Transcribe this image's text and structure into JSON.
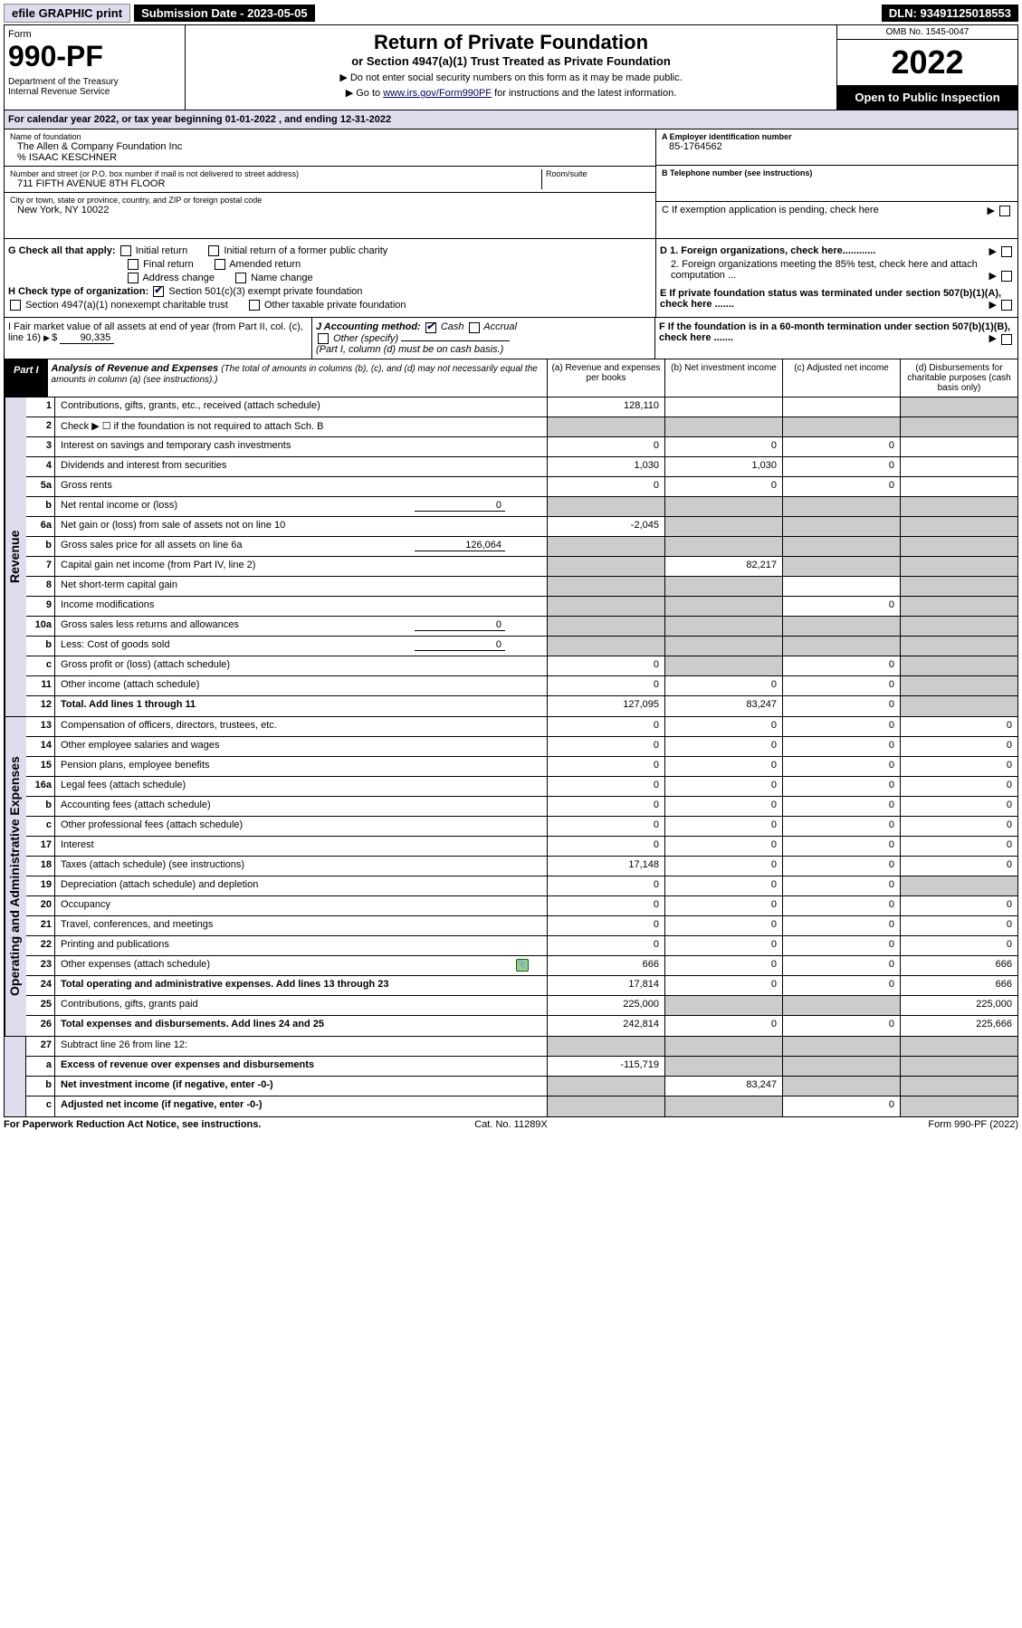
{
  "topbar": {
    "efile": "efile GRAPHIC print",
    "subdate_lbl": "Submission Date - 2023-05-05",
    "dln": "DLN: 93491125018553"
  },
  "header": {
    "form_word": "Form",
    "form_no": "990-PF",
    "dept": "Department of the Treasury\nInternal Revenue Service",
    "title": "Return of Private Foundation",
    "subtitle": "or Section 4947(a)(1) Trust Treated as Private Foundation",
    "note1": "▶ Do not enter social security numbers on this form as it may be made public.",
    "note2_pre": "▶ Go to ",
    "note2_link": "www.irs.gov/Form990PF",
    "note2_post": " for instructions and the latest information.",
    "omb": "OMB No. 1545-0047",
    "year": "2022",
    "open": "Open to Public Inspection"
  },
  "calyr": {
    "pre": "For calendar year 2022, or tax year beginning ",
    "begin": "01-01-2022",
    "mid": " , and ending ",
    "end": "12-31-2022"
  },
  "info": {
    "name_lbl": "Name of foundation",
    "name": "The Allen & Company Foundation Inc",
    "care": "% ISAAC KESCHNER",
    "addr_lbl": "Number and street (or P.O. box number if mail is not delivered to street address)",
    "addr": "711 FIFTH AVENUE 8TH FLOOR",
    "room_lbl": "Room/suite",
    "city_lbl": "City or town, state or province, country, and ZIP or foreign postal code",
    "city": "New York, NY  10022",
    "a_lbl": "A Employer identification number",
    "a_val": "85-1764562",
    "b_lbl": "B Telephone number (see instructions)",
    "c_lbl": "C If exemption application is pending, check here",
    "d1": "D 1. Foreign organizations, check here............",
    "d2": "2. Foreign organizations meeting the 85% test, check here and attach computation ...",
    "e": "E If private foundation status was terminated under section 507(b)(1)(A), check here .......",
    "f": "F If the foundation is in a 60-month termination under section 507(b)(1)(B), check here .......",
    "g_lbl": "G Check all that apply:",
    "g_items": [
      "Initial return",
      "Initial return of a former public charity",
      "Final return",
      "Amended return",
      "Address change",
      "Name change"
    ],
    "h_lbl": "H Check type of organization:",
    "h1": "Section 501(c)(3) exempt private foundation",
    "h2": "Section 4947(a)(1) nonexempt charitable trust",
    "h3": "Other taxable private foundation",
    "i_lbl": "I Fair market value of all assets at end of year (from Part II, col. (c), line 16)",
    "i_val": "90,335",
    "j_lbl": "J Accounting method:",
    "j1": "Cash",
    "j2": "Accrual",
    "j3": "Other (specify)",
    "j_note": "(Part I, column (d) must be on cash basis.)"
  },
  "part1": {
    "label": "Part I",
    "title": "Analysis of Revenue and Expenses",
    "sub": " (The total of amounts in columns (b), (c), and (d) may not necessarily equal the amounts in column (a) (see instructions).)",
    "cols": [
      "(a) Revenue and expenses per books",
      "(b) Net investment income",
      "(c) Adjusted net income",
      "(d) Disbursements for charitable purposes (cash basis only)"
    ]
  },
  "revenue_rows": [
    {
      "no": "1",
      "desc": "Contributions, gifts, grants, etc., received (attach schedule)",
      "a": "128,110",
      "d_grey": true
    },
    {
      "no": "2",
      "desc": "Check ▶ ☐ if the foundation is not required to attach Sch. B",
      "all_grey": true
    },
    {
      "no": "3",
      "desc": "Interest on savings and temporary cash investments",
      "a": "0",
      "b": "0",
      "c": "0"
    },
    {
      "no": "4",
      "desc": "Dividends and interest from securities",
      "a": "1,030",
      "b": "1,030",
      "c": "0"
    },
    {
      "no": "5a",
      "desc": "Gross rents",
      "a": "0",
      "b": "0",
      "c": "0"
    },
    {
      "no": "b",
      "desc": "Net rental income or (loss)",
      "inline_val": "0",
      "all_grey": true
    },
    {
      "no": "6a",
      "desc": "Net gain or (loss) from sale of assets not on line 10",
      "a": "-2,045",
      "bcd_grey": true
    },
    {
      "no": "b",
      "desc": "Gross sales price for all assets on line 6a",
      "inline_val": "126,064",
      "all_grey": true
    },
    {
      "no": "7",
      "desc": "Capital gain net income (from Part IV, line 2)",
      "a_grey": true,
      "b": "82,217",
      "cd_grey": true
    },
    {
      "no": "8",
      "desc": "Net short-term capital gain",
      "ab_grey": true,
      "d_grey": true
    },
    {
      "no": "9",
      "desc": "Income modifications",
      "ab_grey": true,
      "c": "0",
      "d_grey": true
    },
    {
      "no": "10a",
      "desc": "Gross sales less returns and allowances",
      "inline_val": "0",
      "all_grey": true
    },
    {
      "no": "b",
      "desc": "Less: Cost of goods sold",
      "inline_val": "0",
      "all_grey": true
    },
    {
      "no": "c",
      "desc": "Gross profit or (loss) (attach schedule)",
      "a": "0",
      "b_grey": true,
      "c": "0",
      "d_grey": true
    },
    {
      "no": "11",
      "desc": "Other income (attach schedule)",
      "a": "0",
      "b": "0",
      "c": "0",
      "d_grey": true
    },
    {
      "no": "12",
      "desc": "Total. Add lines 1 through 11",
      "bold": true,
      "a": "127,095",
      "b": "83,247",
      "c": "0",
      "d_grey": true
    }
  ],
  "expense_rows": [
    {
      "no": "13",
      "desc": "Compensation of officers, directors, trustees, etc.",
      "a": "0",
      "b": "0",
      "c": "0",
      "d": "0"
    },
    {
      "no": "14",
      "desc": "Other employee salaries and wages",
      "a": "0",
      "b": "0",
      "c": "0",
      "d": "0"
    },
    {
      "no": "15",
      "desc": "Pension plans, employee benefits",
      "a": "0",
      "b": "0",
      "c": "0",
      "d": "0"
    },
    {
      "no": "16a",
      "desc": "Legal fees (attach schedule)",
      "a": "0",
      "b": "0",
      "c": "0",
      "d": "0"
    },
    {
      "no": "b",
      "desc": "Accounting fees (attach schedule)",
      "a": "0",
      "b": "0",
      "c": "0",
      "d": "0"
    },
    {
      "no": "c",
      "desc": "Other professional fees (attach schedule)",
      "a": "0",
      "b": "0",
      "c": "0",
      "d": "0"
    },
    {
      "no": "17",
      "desc": "Interest",
      "a": "0",
      "b": "0",
      "c": "0",
      "d": "0"
    },
    {
      "no": "18",
      "desc": "Taxes (attach schedule) (see instructions)",
      "a": "17,148",
      "b": "0",
      "c": "0",
      "d": "0"
    },
    {
      "no": "19",
      "desc": "Depreciation (attach schedule) and depletion",
      "a": "0",
      "b": "0",
      "c": "0",
      "d_grey": true
    },
    {
      "no": "20",
      "desc": "Occupancy",
      "a": "0",
      "b": "0",
      "c": "0",
      "d": "0"
    },
    {
      "no": "21",
      "desc": "Travel, conferences, and meetings",
      "a": "0",
      "b": "0",
      "c": "0",
      "d": "0"
    },
    {
      "no": "22",
      "desc": "Printing and publications",
      "a": "0",
      "b": "0",
      "c": "0",
      "d": "0"
    },
    {
      "no": "23",
      "desc": "Other expenses (attach schedule)",
      "icon": true,
      "a": "666",
      "b": "0",
      "c": "0",
      "d": "666"
    },
    {
      "no": "24",
      "desc": "Total operating and administrative expenses. Add lines 13 through 23",
      "bold": true,
      "a": "17,814",
      "b": "0",
      "c": "0",
      "d": "666"
    },
    {
      "no": "25",
      "desc": "Contributions, gifts, grants paid",
      "a": "225,000",
      "bc_grey": true,
      "d": "225,000"
    },
    {
      "no": "26",
      "desc": "Total expenses and disbursements. Add lines 24 and 25",
      "bold": true,
      "a": "242,814",
      "b": "0",
      "c": "0",
      "d": "225,666"
    }
  ],
  "bottom_rows": [
    {
      "no": "27",
      "desc": "Subtract line 26 from line 12:",
      "all_grey": true
    },
    {
      "no": "a",
      "desc": "Excess of revenue over expenses and disbursements",
      "bold": true,
      "a": "-115,719",
      "bcd_grey": true
    },
    {
      "no": "b",
      "desc": "Net investment income (if negative, enter -0-)",
      "bold": true,
      "a_grey": true,
      "b": "83,247",
      "cd_grey": true
    },
    {
      "no": "c",
      "desc": "Adjusted net income (if negative, enter -0-)",
      "bold": true,
      "ab_grey": true,
      "c": "0",
      "d_grey": true
    }
  ],
  "sidelabels": {
    "rev": "Revenue",
    "exp": "Operating and Administrative Expenses"
  },
  "footer": {
    "f1": "For Paperwork Reduction Act Notice, see instructions.",
    "f2": "Cat. No. 11289X",
    "f3": "Form 990-PF (2022)"
  }
}
